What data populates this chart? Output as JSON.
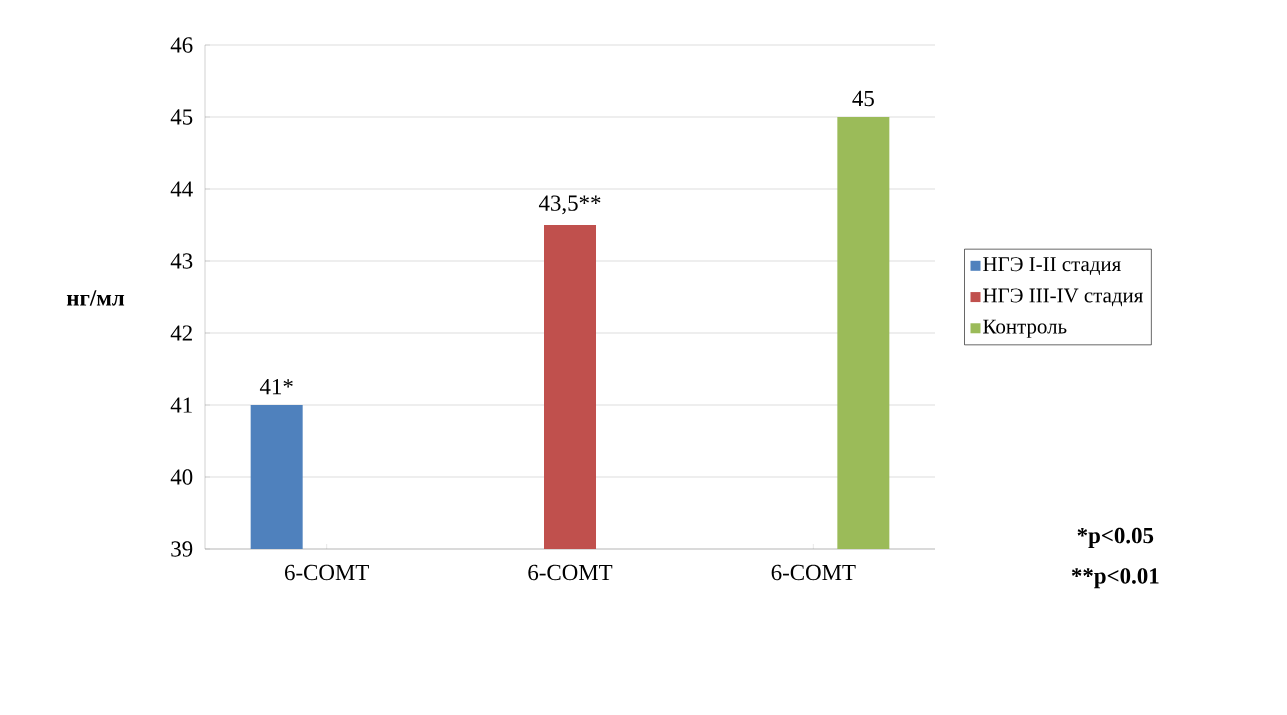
{
  "chart_data": {
    "type": "bar",
    "ylabel": "нг/мл",
    "categories": [
      "6-COMT",
      "6-COMT",
      "6-COMT"
    ],
    "series": [
      {
        "name": "НГЭ I-II стадия",
        "color": "#4f81bd",
        "values": [
          41,
          null,
          null
        ],
        "value_labels": [
          "41*",
          null,
          null
        ]
      },
      {
        "name": "НГЭ III-IV стадия",
        "color": "#c0504d",
        "values": [
          null,
          43.5,
          null
        ],
        "value_labels": [
          null,
          "43,5**",
          null
        ]
      },
      {
        "name": "Контроль",
        "color": "#9bbb59",
        "values": [
          null,
          null,
          45
        ],
        "value_labels": [
          null,
          null,
          "45"
        ]
      }
    ],
    "ylim": [
      39,
      46
    ],
    "yticks": [
      39,
      40,
      41,
      42,
      43,
      44,
      45,
      46
    ],
    "grid": "y",
    "legend": "right",
    "annotations": [
      "*p<0.05",
      "**p<0.01"
    ]
  }
}
